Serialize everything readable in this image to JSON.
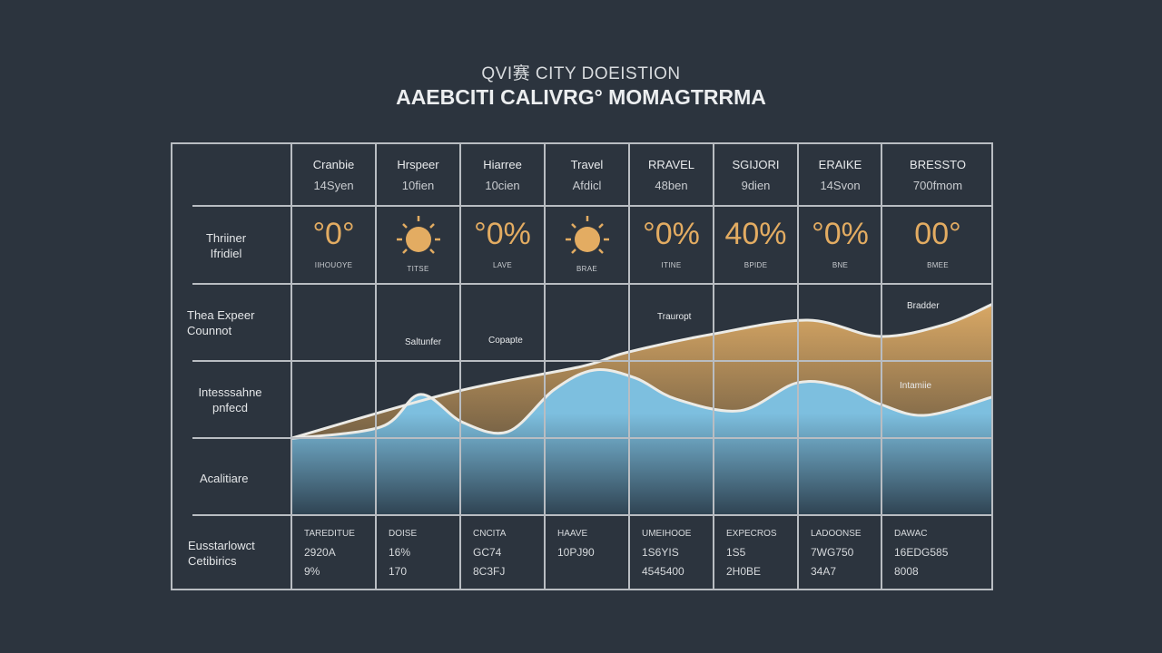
{
  "header": {
    "subtitle": "QVI赛 CITY DOEISTION",
    "title": "AAEBCITI CALIVRG° MOMAGTRRMA"
  },
  "columns": [
    {
      "name": "Cranbie",
      "sub": "14Syen",
      "value": "°0°",
      "icon": "",
      "caption": "IIHOUOYE"
    },
    {
      "name": "Hrspeer",
      "sub": "10fien",
      "value": "",
      "icon": "sun-icon",
      "caption": "TITSE"
    },
    {
      "name": "Hiarree",
      "sub": "10cien",
      "value": "°0%",
      "icon": "",
      "caption": "LAVE"
    },
    {
      "name": "Travel",
      "sub": "Afdicl",
      "value": "",
      "icon": "sun-icon",
      "caption": "BRAE"
    },
    {
      "name": "RRAVEL",
      "sub": "48ben",
      "value": "°0%",
      "icon": "",
      "caption": "ITINE"
    },
    {
      "name": "SGIJORI",
      "sub": "9dien",
      "value": "40%",
      "icon": "",
      "caption": "BPIDE"
    },
    {
      "name": "ERAIKE",
      "sub": "14Svon",
      "value": "°0%",
      "icon": "",
      "caption": "BNE"
    },
    {
      "name": "BRESSTO",
      "sub": "700fmom",
      "value": "00°",
      "icon": "",
      "caption": "BMEE"
    }
  ],
  "rows": [
    {
      "label": "Thriiner Ifridiel"
    },
    {
      "label": "Thea Expeer Counnot"
    },
    {
      "label": "Intesssahne pnfecd"
    },
    {
      "label": "Acalitiare"
    },
    {
      "label": "Eusstarlowct Cetibirics"
    }
  ],
  "bottom": [
    {
      "head": "TAREDITUE",
      "v1": "2920A",
      "v2": "9%"
    },
    {
      "head": "DOISE",
      "v1": "16%",
      "v2": "170"
    },
    {
      "head": "CNCITA",
      "v1": "GC74",
      "v2": "8C3FJ"
    },
    {
      "head": "HAAVE",
      "v1": "10PJ90",
      "v2": ""
    },
    {
      "head": "UMEIHOOE",
      "v1": "1S6YIS",
      "v2": "4545400"
    },
    {
      "head": "EXPECROS",
      "v1": "1S5",
      "v2": "2H0BE"
    },
    {
      "head": "LADOONSE",
      "v1": "7WG750",
      "v2": "34A7"
    },
    {
      "head": "DAWAC",
      "v1": "16EDG585",
      "v2": "8008"
    }
  ],
  "chart_data": {
    "type": "area",
    "xlim": [
      0,
      8
    ],
    "ylim": [
      0,
      100
    ],
    "series": [
      {
        "color": "#d9a865",
        "x": [
          0,
          1.86,
          3.31,
          3.82,
          4.81,
          5.89,
          6.7,
          7.44,
          8
        ],
        "y": [
          33,
          53,
          64,
          70,
          78,
          84,
          77,
          82,
          91
        ]
      },
      {
        "color": "#7dbfdf",
        "x": [
          0,
          1.03,
          1.48,
          1.96,
          2.48,
          3.0,
          3.46,
          3.93,
          4.39,
          5.12,
          5.77,
          6.3,
          6.7,
          7.23,
          8
        ],
        "y": [
          33,
          38,
          52,
          40,
          36,
          54,
          62.5,
          59,
          50,
          45,
          57,
          55,
          48,
          43,
          51
        ]
      }
    ],
    "annotations": [
      "Trauropt",
      "Bradder",
      "Saltunfer",
      "Copapte",
      "Intamiie"
    ]
  },
  "colors": {
    "background": "#2c343e",
    "accent": "#e3ac62",
    "grid": "#b9bdc2"
  }
}
